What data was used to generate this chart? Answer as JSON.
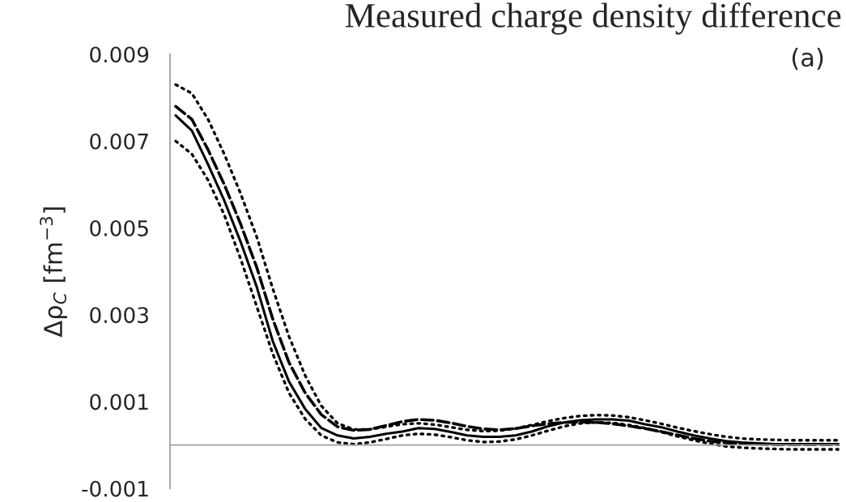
{
  "chart_data": {
    "type": "line",
    "title": "Measured charge density difference",
    "ylabel": "Δρ$_{C}$ [fm$^{−3}$]",
    "annotations": [
      "(a)"
    ],
    "categories": [
      null,
      null,
      null,
      null,
      null,
      null,
      null,
      null,
      null,
      null,
      null,
      null,
      null,
      null,
      null,
      null,
      null,
      null,
      null,
      null,
      null,
      null,
      null,
      null,
      null,
      null,
      null,
      null,
      null,
      null,
      null,
      null,
      null,
      null,
      null,
      null,
      null,
      null,
      null,
      null,
      null,
      null
    ],
    "series": [
      {
        "color": "#000000",
        "line_style": "solid",
        "values": [
          0.00759,
          0.00724,
          0.00646,
          0.00563,
          0.00469,
          0.00365,
          0.00239,
          0.00146,
          0.00083,
          0.00039,
          0.00022,
          0.00015,
          0.00019,
          0.00026,
          0.00031,
          0.00039,
          0.00037,
          0.0003,
          0.00022,
          0.00019,
          0.00019,
          0.00022,
          0.00031,
          0.00043,
          0.00052,
          0.00057,
          0.00059,
          0.00059,
          0.00056,
          0.00048,
          0.00041,
          0.00031,
          0.00022,
          0.00015,
          9e-05,
          6e-05,
          4e-05,
          2e-05,
          2e-05,
          2e-05,
          2e-05,
          2e-05
        ]
      },
      {
        "color": "#000000",
        "line_style": "dashed",
        "values": [
          0.0078,
          0.0075,
          0.0068,
          0.006,
          0.0051,
          0.0041,
          0.0029,
          0.0019,
          0.0012,
          0.0007,
          0.00042,
          0.00034,
          0.00036,
          0.00045,
          0.00054,
          0.00059,
          0.00057,
          0.00051,
          0.00043,
          0.00037,
          0.00035,
          0.00038,
          0.00044,
          0.00049,
          0.00052,
          0.00053,
          0.00052,
          0.00049,
          0.00044,
          0.00038,
          0.00031,
          0.00023,
          0.00015,
          9e-05,
          5e-05,
          3e-05,
          2e-05,
          1e-05,
          1e-05,
          1e-05,
          1e-05,
          1e-05
        ]
      },
      {
        "color": "#000000",
        "line_style": "dotted",
        "values": [
          0.0083,
          0.0081,
          0.0075,
          0.0067,
          0.0058,
          0.0048,
          0.0036,
          0.0025,
          0.0016,
          0.0009,
          0.0005,
          0.00036,
          0.00036,
          0.00042,
          0.00048,
          0.0005,
          0.00047,
          0.00041,
          0.00035,
          0.00032,
          0.00033,
          0.00038,
          0.00046,
          0.00055,
          0.00062,
          0.00067,
          0.00069,
          0.00068,
          0.00064,
          0.00057,
          0.00049,
          0.0004,
          0.00032,
          0.00025,
          0.00019,
          0.00015,
          0.00013,
          0.00012,
          0.00011,
          0.00011,
          0.00011,
          0.00011
        ]
      },
      {
        "color": "#000000",
        "line_style": "dotted",
        "values": [
          0.007,
          0.0067,
          0.0061,
          0.0053,
          0.0043,
          0.0032,
          0.0021,
          0.0012,
          0.0006,
          0.00022,
          6e-05,
          2e-05,
          6e-05,
          0.00014,
          0.00022,
          0.00026,
          0.00024,
          0.00018,
          0.00011,
          7e-05,
          8e-05,
          0.00013,
          0.00022,
          0.00033,
          0.00043,
          0.0005,
          0.00052,
          0.00051,
          0.00046,
          0.00039,
          0.0003,
          0.0002,
          0.00011,
          3e-05,
          -3e-05,
          -6e-05,
          -8e-05,
          -9e-05,
          -0.0001,
          -0.0001,
          -0.0001,
          -0.0001
        ]
      }
    ],
    "ylim": [
      -0.001,
      0.009
    ],
    "yticks": [
      -0.001,
      0.001,
      0.003,
      0.005,
      0.007,
      0.009
    ],
    "tick_labels": "y",
    "grid": false,
    "legend": false
  }
}
